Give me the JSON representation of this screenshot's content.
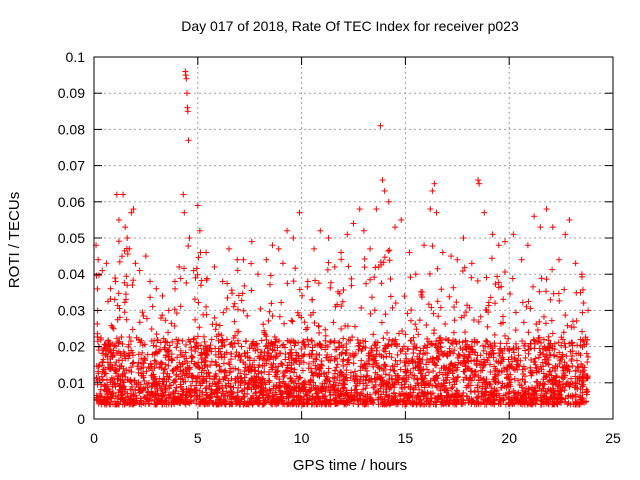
{
  "chart_data": {
    "type": "scatter",
    "title": "Day 017 of 2018, Rate Of TEC Index for receiver p023",
    "xlabel": "GPS time / hours",
    "ylabel": "ROTI / TECUs",
    "xlim": [
      0,
      25
    ],
    "ylim": [
      0,
      0.1
    ],
    "x_ticks": [
      "0",
      "5",
      "10",
      "15",
      "20",
      "25"
    ],
    "y_ticks": [
      "0",
      "0.01",
      "0.02",
      "0.03",
      "0.04",
      "0.05",
      "0.06",
      "0.07",
      "0.08",
      "0.09",
      "0.1"
    ],
    "grid": true,
    "marker": "+",
    "series": [
      {
        "color": "#ff0000",
        "points": [
          [
            0.1,
            0.048
          ],
          [
            0.2,
            0.044
          ],
          [
            0.4,
            0.041
          ],
          [
            0.6,
            0.043
          ],
          [
            0.8,
            0.036
          ],
          [
            1.0,
            0.033
          ],
          [
            1.1,
            0.062
          ],
          [
            1.2,
            0.055
          ],
          [
            1.4,
            0.062
          ],
          [
            1.5,
            0.053
          ],
          [
            1.6,
            0.05
          ],
          [
            1.7,
            0.047
          ],
          [
            1.8,
            0.057
          ],
          [
            1.9,
            0.058
          ],
          [
            2.0,
            0.043
          ],
          [
            2.2,
            0.041
          ],
          [
            2.5,
            0.045
          ],
          [
            2.7,
            0.038
          ],
          [
            3.0,
            0.036
          ],
          [
            3.3,
            0.034
          ],
          [
            3.6,
            0.03
          ],
          [
            3.9,
            0.038
          ],
          [
            4.1,
            0.042
          ],
          [
            4.3,
            0.062
          ],
          [
            4.35,
            0.057
          ],
          [
            4.4,
            0.096
          ],
          [
            4.42,
            0.095
          ],
          [
            4.45,
            0.094
          ],
          [
            4.48,
            0.09
          ],
          [
            4.5,
            0.086
          ],
          [
            4.52,
            0.085
          ],
          [
            4.55,
            0.077
          ],
          [
            4.6,
            0.05
          ],
          [
            4.8,
            0.041
          ],
          [
            5.0,
            0.059
          ],
          [
            5.1,
            0.052
          ],
          [
            5.4,
            0.046
          ],
          [
            5.8,
            0.042
          ],
          [
            6.2,
            0.038
          ],
          [
            6.5,
            0.047
          ],
          [
            6.9,
            0.044
          ],
          [
            7.2,
            0.044
          ],
          [
            7.6,
            0.049
          ],
          [
            7.9,
            0.04
          ],
          [
            8.3,
            0.044
          ],
          [
            8.6,
            0.048
          ],
          [
            8.9,
            0.047
          ],
          [
            9.1,
            0.043
          ],
          [
            9.3,
            0.052
          ],
          [
            9.6,
            0.05
          ],
          [
            9.9,
            0.057
          ],
          [
            10.3,
            0.038
          ],
          [
            10.6,
            0.047
          ],
          [
            10.9,
            0.052
          ],
          [
            11.3,
            0.05
          ],
          [
            11.6,
            0.042
          ],
          [
            11.9,
            0.046
          ],
          [
            12.2,
            0.051
          ],
          [
            12.5,
            0.054
          ],
          [
            12.8,
            0.058
          ],
          [
            13.0,
            0.052
          ],
          [
            13.3,
            0.047
          ],
          [
            13.6,
            0.058
          ],
          [
            13.8,
            0.081
          ],
          [
            13.9,
            0.066
          ],
          [
            14.0,
            0.063
          ],
          [
            14.2,
            0.06
          ],
          [
            14.5,
            0.053
          ],
          [
            14.8,
            0.055
          ],
          [
            15.2,
            0.046
          ],
          [
            15.5,
            0.04
          ],
          [
            15.9,
            0.048
          ],
          [
            16.2,
            0.058
          ],
          [
            16.3,
            0.063
          ],
          [
            16.4,
            0.065
          ],
          [
            16.5,
            0.057
          ],
          [
            16.8,
            0.046
          ],
          [
            17.2,
            0.045
          ],
          [
            17.5,
            0.044
          ],
          [
            17.8,
            0.05
          ],
          [
            18.2,
            0.043
          ],
          [
            18.5,
            0.066
          ],
          [
            18.55,
            0.065
          ],
          [
            18.8,
            0.057
          ],
          [
            19.2,
            0.051
          ],
          [
            19.5,
            0.048
          ],
          [
            19.8,
            0.049
          ],
          [
            20.2,
            0.051
          ],
          [
            20.6,
            0.044
          ],
          [
            20.9,
            0.048
          ],
          [
            21.2,
            0.056
          ],
          [
            21.5,
            0.053
          ],
          [
            21.8,
            0.058
          ],
          [
            22.1,
            0.053
          ],
          [
            22.4,
            0.044
          ],
          [
            22.7,
            0.051
          ],
          [
            22.9,
            0.055
          ],
          [
            23.2,
            0.043
          ],
          [
            23.5,
            0.04
          ],
          [
            23.8,
            0.03
          ]
        ]
      }
    ]
  }
}
